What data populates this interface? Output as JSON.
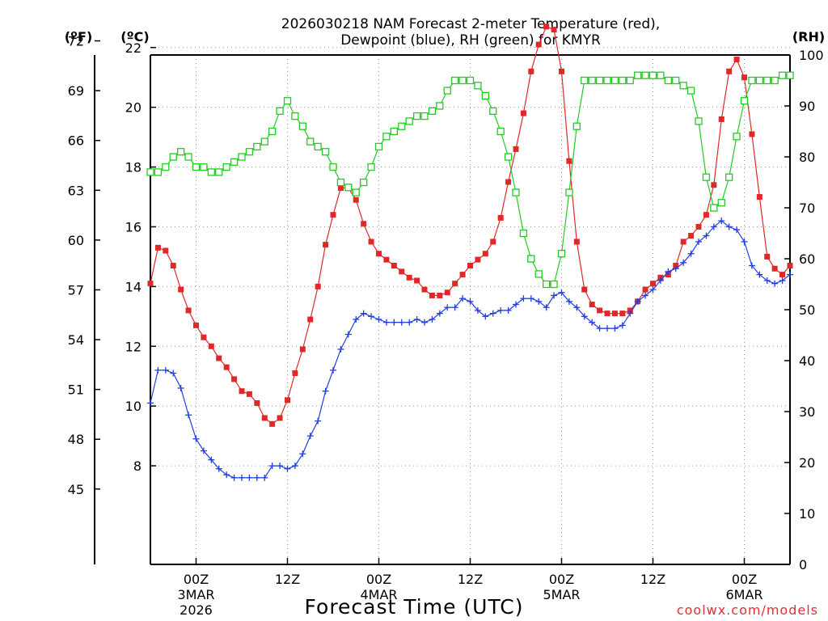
{
  "chart_data": {
    "type": "line",
    "title_line1": "2026030218 NAM Forecast 2-meter Temperature (red),",
    "title_line2": "Dewpoint (blue), RH (green) for KMYR",
    "units": {
      "f": "(ºF)",
      "c": "(ºC)",
      "rh": "(RH)"
    },
    "xlabel": "Forecast Time (UTC)",
    "credit": "coolwx.com/models",
    "x_range_hours": [
      0,
      84
    ],
    "x_ticks": [
      {
        "hour": 6,
        "line1": "00Z",
        "line2": "3MAR",
        "line3": "2026"
      },
      {
        "hour": 18,
        "line1": "12Z",
        "line2": "",
        "line3": ""
      },
      {
        "hour": 30,
        "line1": "00Z",
        "line2": "4MAR",
        "line3": ""
      },
      {
        "hour": 42,
        "line1": "12Z",
        "line2": "",
        "line3": ""
      },
      {
        "hour": 54,
        "line1": "00Z",
        "line2": "5MAR",
        "line3": ""
      },
      {
        "hour": 66,
        "line1": "12Z",
        "line2": "",
        "line3": ""
      },
      {
        "hour": 78,
        "line1": "00Z",
        "line2": "6MAR",
        "line3": ""
      }
    ],
    "celsius_axis": {
      "min": 4.7,
      "max": 21.75,
      "ticks": [
        "8",
        "10",
        "12",
        "14",
        "16",
        "18",
        "20",
        "22"
      ]
    },
    "fahrenheit_axis": {
      "ticks": [
        "45",
        "48",
        "51",
        "54",
        "57",
        "60",
        "63",
        "66",
        "69",
        "72"
      ]
    },
    "rh_axis": {
      "min": 0,
      "max": 100,
      "ticks": [
        "0",
        "10",
        "20",
        "30",
        "40",
        "50",
        "60",
        "70",
        "80",
        "90",
        "100"
      ]
    },
    "series": [
      {
        "name": "Temperature",
        "unit": "C",
        "color": "#e02828",
        "marker": "filled-square",
        "hours": [
          0,
          1,
          2,
          3,
          4,
          5,
          6,
          7,
          8,
          9,
          10,
          11,
          12,
          13,
          14,
          15,
          16,
          17,
          18,
          19,
          20,
          21,
          22,
          23,
          24,
          25,
          26,
          27,
          28,
          29,
          30,
          31,
          32,
          33,
          34,
          35,
          36,
          37,
          38,
          39,
          40,
          41,
          42,
          43,
          44,
          45,
          46,
          47,
          48,
          49,
          50,
          51,
          52,
          53,
          54,
          55,
          56,
          57,
          58,
          59,
          60,
          61,
          62,
          63,
          64,
          65,
          66,
          67,
          68,
          69,
          70,
          71,
          72,
          73,
          74,
          75,
          76,
          77,
          78,
          79,
          80,
          81,
          82,
          83,
          84
        ],
        "values": [
          14.1,
          15.3,
          15.2,
          14.7,
          13.9,
          13.2,
          12.7,
          12.3,
          12,
          11.6,
          11.3,
          10.9,
          10.5,
          10.4,
          10.1,
          9.6,
          9.4,
          9.6,
          10.2,
          11.1,
          11.9,
          12.9,
          14,
          15.4,
          16.4,
          17.3,
          17.3,
          16.9,
          16.1,
          15.5,
          15.1,
          14.9,
          14.7,
          14.5,
          14.3,
          14.2,
          13.9,
          13.7,
          13.7,
          13.8,
          14.1,
          14.4,
          14.7,
          14.9,
          15.1,
          15.5,
          16.3,
          17.5,
          18.6,
          19.8,
          21.2,
          22.1,
          22.7,
          22.6,
          21.2,
          18.2,
          15.5,
          13.9,
          13.4,
          13.2,
          13.1,
          13.1,
          13.1,
          13.2,
          13.5,
          13.9,
          14.1,
          14.3,
          14.4,
          14.7,
          15.5,
          15.7,
          16.0,
          16.4,
          17.4,
          19.6,
          21.2,
          21.6,
          21.0,
          19.1,
          17.0,
          15.0,
          14.6,
          14.4,
          14.7
        ]
      },
      {
        "name": "Dewpoint",
        "unit": "C",
        "color": "#2040e0",
        "marker": "plus",
        "hours": [
          0,
          1,
          2,
          3,
          4,
          5,
          6,
          7,
          8,
          9,
          10,
          11,
          12,
          13,
          14,
          15,
          16,
          17,
          18,
          19,
          20,
          21,
          22,
          23,
          24,
          25,
          26,
          27,
          28,
          29,
          30,
          31,
          32,
          33,
          34,
          35,
          36,
          37,
          38,
          39,
          40,
          41,
          42,
          43,
          44,
          45,
          46,
          47,
          48,
          49,
          50,
          51,
          52,
          53,
          54,
          55,
          56,
          57,
          58,
          59,
          60,
          61,
          62,
          63,
          64,
          65,
          66,
          67,
          68,
          69,
          70,
          71,
          72,
          73,
          74,
          75,
          76,
          77,
          78,
          79,
          80,
          81,
          82,
          83,
          84
        ],
        "values": [
          10.1,
          11.2,
          11.2,
          11.1,
          10.6,
          9.7,
          8.9,
          8.5,
          8.2,
          7.9,
          7.7,
          7.6,
          7.6,
          7.6,
          7.6,
          7.6,
          8,
          8,
          7.9,
          8,
          8.4,
          9,
          9.5,
          10.5,
          11.2,
          11.9,
          12.4,
          12.9,
          13.1,
          13.0,
          12.9,
          12.8,
          12.8,
          12.8,
          12.8,
          12.9,
          12.8,
          12.9,
          13.1,
          13.3,
          13.3,
          13.6,
          13.5,
          13.2,
          13.0,
          13.1,
          13.2,
          13.2,
          13.4,
          13.6,
          13.6,
          13.5,
          13.3,
          13.7,
          13.8,
          13.5,
          13.3,
          13.0,
          12.8,
          12.6,
          12.6,
          12.6,
          12.7,
          13.1,
          13.5,
          13.7,
          13.9,
          14.2,
          14.5,
          14.6,
          14.8,
          15.1,
          15.5,
          15.7,
          16.0,
          16.2,
          16.0,
          15.9,
          15.5,
          14.7,
          14.4,
          14.2,
          14.1,
          14.2,
          14.4
        ]
      },
      {
        "name": "RH",
        "unit": "%",
        "color": "#22cc22",
        "marker": "open-square",
        "hours": [
          0,
          1,
          2,
          3,
          4,
          5,
          6,
          7,
          8,
          9,
          10,
          11,
          12,
          13,
          14,
          15,
          16,
          17,
          18,
          19,
          20,
          21,
          22,
          23,
          24,
          25,
          26,
          27,
          28,
          29,
          30,
          31,
          32,
          33,
          34,
          35,
          36,
          37,
          38,
          39,
          40,
          41,
          42,
          43,
          44,
          45,
          46,
          47,
          48,
          49,
          50,
          51,
          52,
          53,
          54,
          55,
          56,
          57,
          58,
          59,
          60,
          61,
          62,
          63,
          64,
          65,
          66,
          67,
          68,
          69,
          70,
          71,
          72,
          73,
          74,
          75,
          76,
          77,
          78,
          79,
          80,
          81,
          82,
          83,
          84
        ],
        "values": [
          77,
          77,
          78,
          80,
          81,
          80,
          78,
          78,
          77,
          77,
          78,
          79,
          80,
          81,
          82,
          83,
          85,
          89,
          91,
          88,
          86,
          83,
          82,
          81,
          78,
          75,
          74,
          73,
          75,
          78,
          82,
          84,
          85,
          86,
          87,
          88,
          88,
          89,
          90,
          93,
          95,
          95,
          95,
          94,
          92,
          89,
          85,
          80,
          73,
          65,
          60,
          57,
          55,
          55,
          61,
          73,
          86,
          95,
          95,
          95,
          95,
          95,
          95,
          95,
          96,
          96,
          96,
          96,
          95,
          95,
          94,
          93,
          87,
          76,
          70,
          71,
          76,
          84,
          91,
          95,
          95,
          95,
          95,
          96,
          96
        ]
      }
    ]
  }
}
